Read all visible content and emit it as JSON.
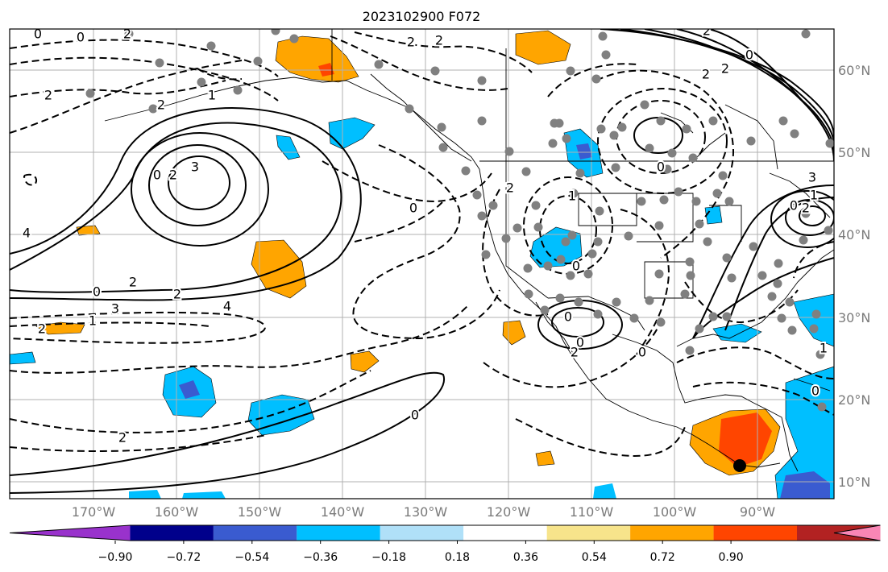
{
  "title": "2023102900 F072",
  "lon_labels": [
    "170°W",
    "160°W",
    "150°W",
    "140°W",
    "130°W",
    "120°W",
    "110°W",
    "100°W",
    "90°W"
  ],
  "lat_labels": [
    "10°N",
    "20°N",
    "30°N",
    "40°N",
    "50°N",
    "60°N"
  ],
  "colorbar": {
    "colors": [
      "#9932cc",
      "#00008b",
      "#3a5bd0",
      "#00bfff",
      "#b0e0f8",
      "#ffffff",
      "#f7e48b",
      "#ffa500",
      "#ff4500",
      "#b22222",
      "#f986b5"
    ],
    "ticks": [
      "−0.90",
      "−0.72",
      "−0.54",
      "−0.36",
      "−0.18",
      "0.18",
      "0.36",
      "0.54",
      "0.72",
      "0.90"
    ]
  },
  "contour_labels": [
    "0",
    "0",
    "2",
    "2",
    "2",
    "2",
    "2",
    "1",
    "0",
    "2",
    "3",
    "4",
    "2",
    "0",
    "2",
    "3",
    "4",
    "1",
    "2",
    "0",
    "2",
    "1",
    "0",
    "0",
    "2",
    "0",
    "0",
    "2",
    "0",
    "2",
    "2",
    "2",
    "0",
    "1",
    "0",
    "0",
    "2",
    "1",
    "0",
    "3"
  ],
  "map_style": {
    "shading": "positive: orange/red, negative: blue",
    "contours": "solid positive, dashed negative",
    "marker": "black dot",
    "stations": "gray dots"
  }
}
